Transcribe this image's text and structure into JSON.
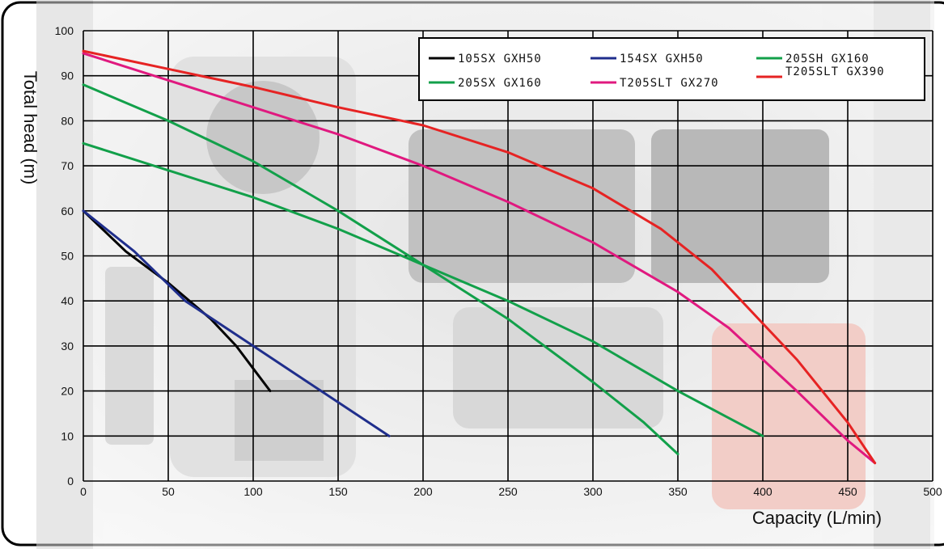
{
  "chart_data": {
    "type": "line",
    "title": "",
    "xlabel": "Capacity (L/min)",
    "ylabel": "Total head (m)",
    "xlim": [
      0,
      500
    ],
    "ylim": [
      0,
      100
    ],
    "xticks": [
      0,
      50,
      100,
      150,
      200,
      250,
      300,
      350,
      400,
      450,
      500
    ],
    "yticks": [
      0,
      10,
      20,
      30,
      40,
      50,
      60,
      70,
      80,
      90,
      100
    ],
    "grid": true,
    "legend_position": "top-right",
    "series": [
      {
        "name": "105SX GXH50",
        "color": "#000000",
        "points": [
          [
            0,
            60
          ],
          [
            25,
            51
          ],
          [
            50,
            44
          ],
          [
            75,
            36
          ],
          [
            90,
            30
          ],
          [
            100,
            25
          ],
          [
            110,
            20
          ]
        ]
      },
      {
        "name": "154SX GXH50",
        "color": "#1f2e8c",
        "points": [
          [
            0,
            60
          ],
          [
            30,
            51
          ],
          [
            60,
            40
          ],
          [
            100,
            30
          ],
          [
            140,
            20
          ],
          [
            180,
            10
          ]
        ]
      },
      {
        "name": "205SH GX160",
        "color": "#12a04a",
        "points": [
          [
            0,
            88
          ],
          [
            50,
            80
          ],
          [
            100,
            71
          ],
          [
            150,
            60
          ],
          [
            200,
            48
          ],
          [
            250,
            36
          ],
          [
            300,
            22
          ],
          [
            330,
            13
          ],
          [
            350,
            6
          ]
        ]
      },
      {
        "name": "205SX GX160",
        "color": "#12a04a",
        "points": [
          [
            0,
            75
          ],
          [
            50,
            69
          ],
          [
            100,
            63
          ],
          [
            150,
            56
          ],
          [
            200,
            48
          ],
          [
            250,
            40
          ],
          [
            300,
            31
          ],
          [
            350,
            20
          ],
          [
            400,
            10
          ]
        ]
      },
      {
        "name": "T205SLT GX270",
        "color": "#e0197f",
        "points": [
          [
            0,
            95
          ],
          [
            50,
            89
          ],
          [
            100,
            83
          ],
          [
            150,
            77
          ],
          [
            200,
            70
          ],
          [
            250,
            62
          ],
          [
            300,
            53
          ],
          [
            350,
            42
          ],
          [
            380,
            34
          ],
          [
            400,
            27
          ],
          [
            420,
            20
          ],
          [
            450,
            9
          ],
          [
            466,
            4
          ]
        ]
      },
      {
        "name": "T205SLT GX390",
        "color": "#e62323",
        "points": [
          [
            0,
            95.5
          ],
          [
            50,
            91.5
          ],
          [
            100,
            87.5
          ],
          [
            150,
            83
          ],
          [
            200,
            79
          ],
          [
            250,
            73
          ],
          [
            300,
            65
          ],
          [
            340,
            56
          ],
          [
            370,
            47
          ],
          [
            400,
            35
          ],
          [
            420,
            27
          ],
          [
            450,
            13
          ],
          [
            466,
            4
          ]
        ]
      }
    ]
  }
}
